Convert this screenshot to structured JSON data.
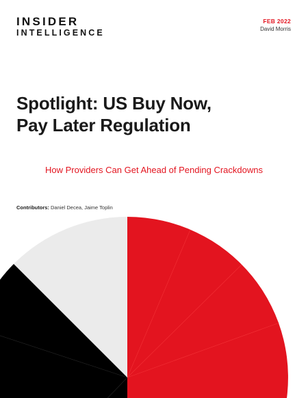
{
  "logo": {
    "line1": "INSIDER",
    "line2": "INTELLIGENCE"
  },
  "meta": {
    "date": "FEB 2022",
    "author": "David Morris"
  },
  "title": {
    "line1": "Spotlight: US Buy Now,",
    "line2": "Pay Later Regulation"
  },
  "subtitle": "How Providers Can Get Ahead of Pending Crackdowns",
  "contributors": {
    "label": "Contributors:",
    "names": "Daniel Decea, Jaime Toplin"
  },
  "colors": {
    "accent_red": "#e3141f",
    "black": "#000000",
    "light_gray": "#ebebeb",
    "text": "#1a1a1a"
  }
}
